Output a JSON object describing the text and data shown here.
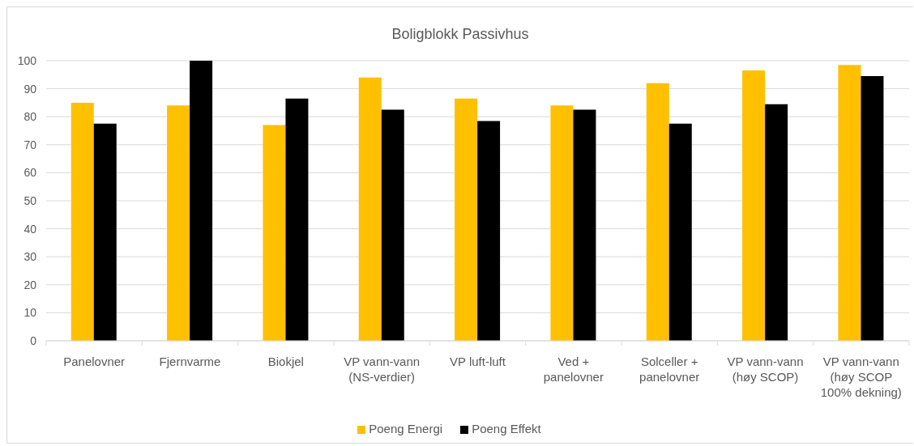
{
  "chart_data": {
    "type": "bar",
    "title": "Boligblokk Passivhus",
    "categories": [
      "Panelovner",
      "Fjernvarme",
      "Biokjel",
      "VP vann-vann (NS-verdier)",
      "VP luft-luft",
      "Ved + panelovner",
      "Solceller + panelovner",
      "VP vann-vann (høy SCOP)",
      "VP vann-vann (høy SCOP 100% dekning)"
    ],
    "series": [
      {
        "name": "Poeng Energi",
        "color": "#ffc000",
        "values": [
          85,
          84,
          77,
          94,
          86.5,
          84,
          92,
          96.5,
          98.5
        ]
      },
      {
        "name": "Poeng Effekt",
        "color": "#000000",
        "values": [
          77.5,
          100,
          86.5,
          82.5,
          78.5,
          82.5,
          77.5,
          84.5,
          94.5
        ]
      }
    ],
    "ylim": [
      0,
      100
    ],
    "yticks": [
      0,
      10,
      20,
      30,
      40,
      50,
      60,
      70,
      80,
      90,
      100
    ],
    "grid": "y",
    "legend": "bottom"
  }
}
